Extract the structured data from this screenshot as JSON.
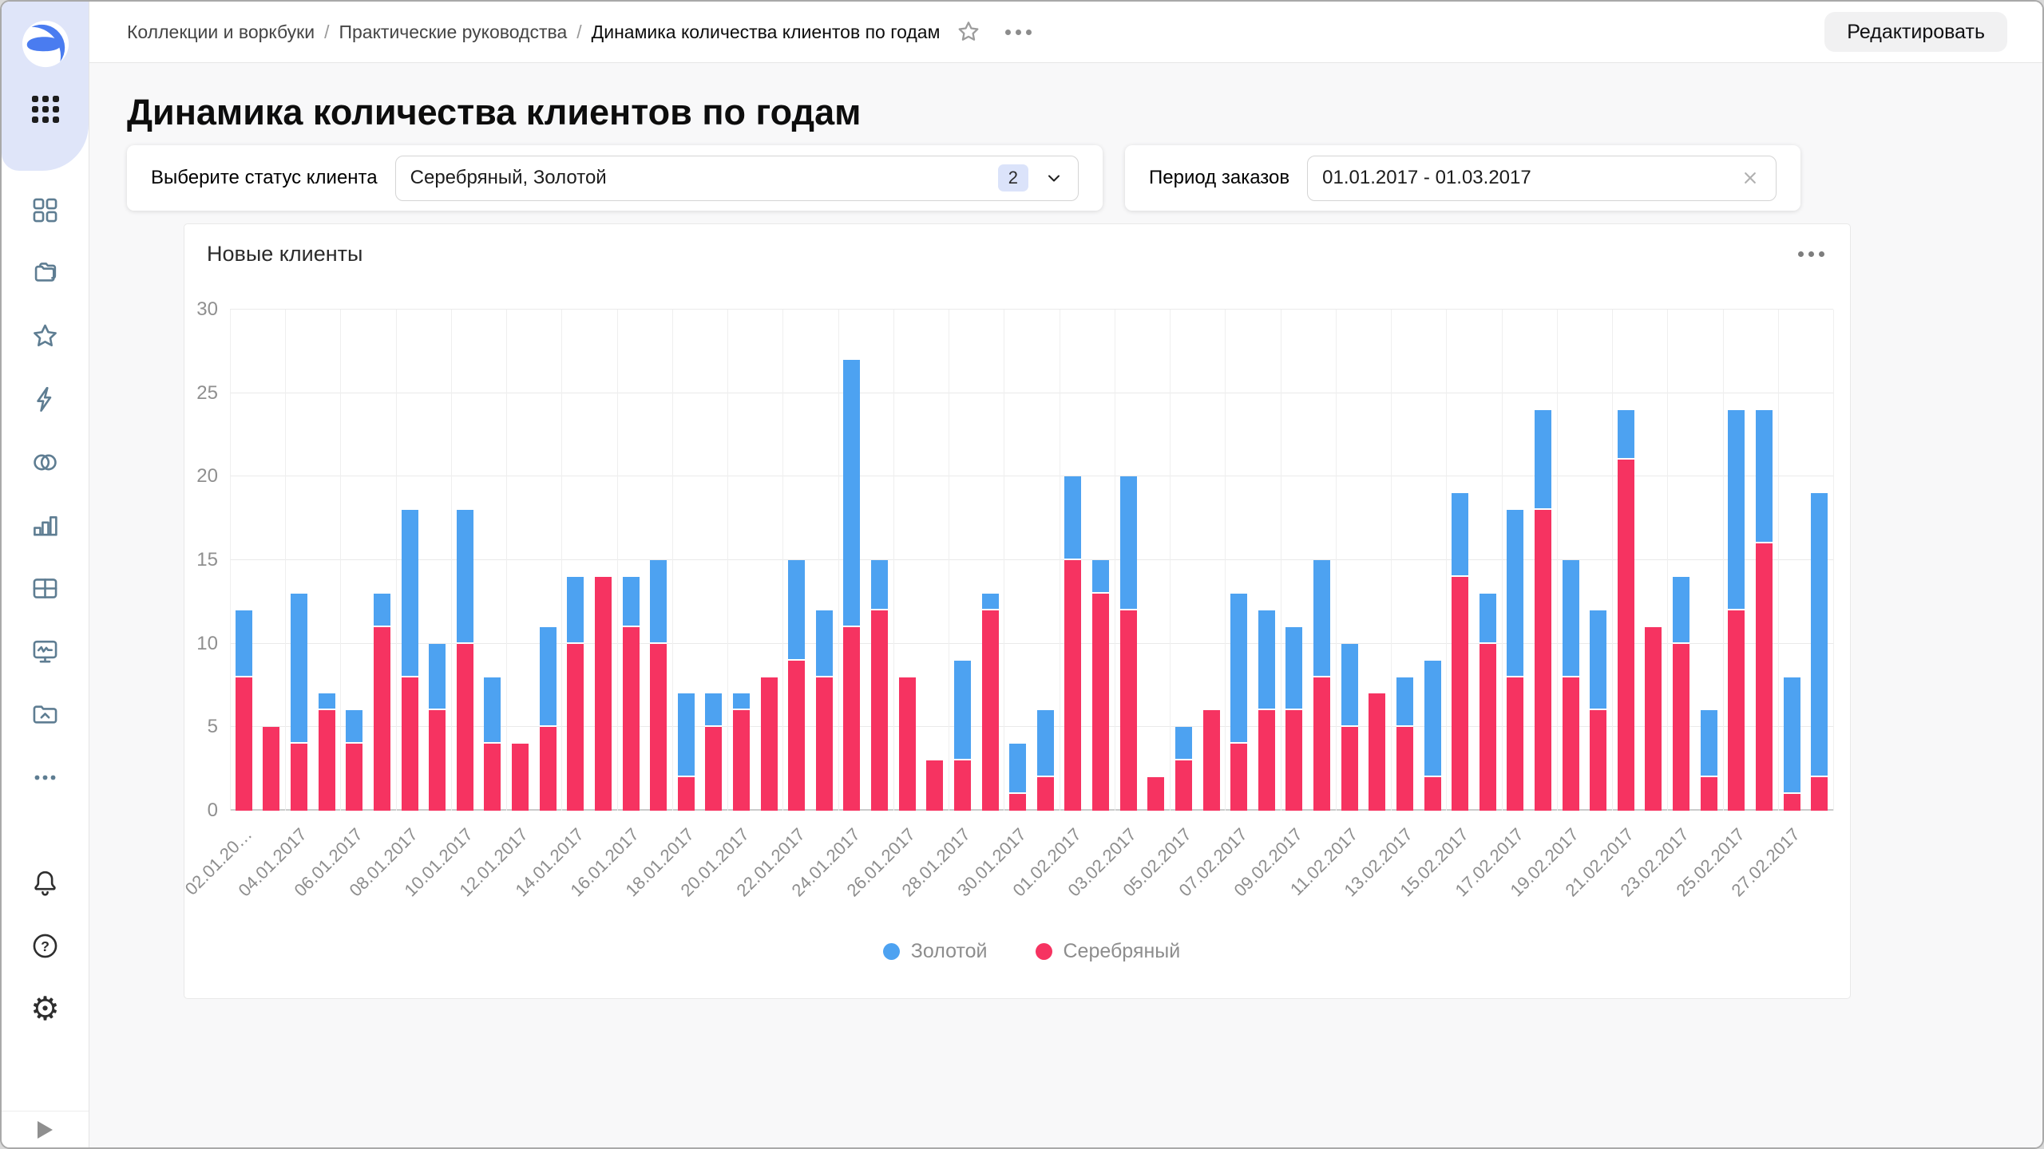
{
  "breadcrumb": {
    "items": [
      "Коллекции и воркбуки",
      "Практические руководства",
      "Динамика количества клиентов по годам"
    ],
    "separator": "/"
  },
  "topbar": {
    "edit_label": "Редактировать"
  },
  "sidebar": {
    "icons": [
      "datalens-logo",
      "apps-grid",
      "squares-grid",
      "collections-folders",
      "favorites-star",
      "quick-lightning",
      "connections-circles",
      "charts-bars",
      "dataset-table",
      "monitoring-screen",
      "storage-folder-cloud",
      "more-ellipsis",
      "notifications-bell",
      "help-question",
      "settings-gear",
      "expand-play"
    ]
  },
  "page": {
    "title": "Динамика количества клиентов по годам"
  },
  "filters": {
    "status": {
      "label": "Выберите статус клиента",
      "value": "Серебряный, Золотой",
      "count_badge": "2"
    },
    "period": {
      "label": "Период заказов",
      "value": "01.01.2017 - 01.03.2017"
    }
  },
  "chart": {
    "title": "Новые клиенты"
  },
  "chart_data": {
    "type": "bar",
    "stacked": true,
    "title": "Новые клиенты",
    "xlabel": "",
    "ylabel": "",
    "ylim": [
      0,
      30
    ],
    "y_ticks": [
      0,
      5,
      10,
      15,
      20,
      25,
      30
    ],
    "grid": true,
    "legend_position": "bottom",
    "colors": {
      "gold": "#4DA2F1",
      "silver": "#F63361"
    },
    "categories": [
      "02.01.2017",
      "03.01.2017",
      "04.01.2017",
      "05.01.2017",
      "06.01.2017",
      "07.01.2017",
      "08.01.2017",
      "09.01.2017",
      "10.01.2017",
      "11.01.2017",
      "12.01.2017",
      "13.01.2017",
      "14.01.2017",
      "15.01.2017",
      "16.01.2017",
      "17.01.2017",
      "18.01.2017",
      "19.01.2017",
      "20.01.2017",
      "21.01.2017",
      "22.01.2017",
      "23.01.2017",
      "24.01.2017",
      "25.01.2017",
      "26.01.2017",
      "27.01.2017",
      "28.01.2017",
      "29.01.2017",
      "30.01.2017",
      "31.01.2017",
      "01.02.2017",
      "02.02.2017",
      "03.02.2017",
      "04.02.2017",
      "05.02.2017",
      "06.02.2017",
      "07.02.2017",
      "08.02.2017",
      "09.02.2017",
      "10.02.2017",
      "11.02.2017",
      "12.02.2017",
      "13.02.2017",
      "14.02.2017",
      "15.02.2017",
      "16.02.2017",
      "17.02.2017",
      "18.02.2017",
      "19.02.2017",
      "20.02.2017",
      "21.02.2017",
      "22.02.2017",
      "23.02.2017",
      "24.02.2017",
      "25.02.2017",
      "26.02.2017",
      "27.02.2017",
      "28.02.2017"
    ],
    "x_tick_labels": [
      "02.01.20…",
      "04.01.2017",
      "06.01.2017",
      "08.01.2017",
      "10.01.2017",
      "12.01.2017",
      "14.01.2017",
      "16.01.2017",
      "18.01.2017",
      "20.01.2017",
      "22.01.2017",
      "24.01.2017",
      "26.01.2017",
      "28.01.2017",
      "30.01.2017",
      "01.02.2017",
      "03.02.2017",
      "05.02.2017",
      "07.02.2017",
      "09.02.2017",
      "11.02.2017",
      "13.02.2017",
      "15.02.2017",
      "17.02.2017",
      "19.02.2017",
      "21.02.2017",
      "23.02.2017",
      "25.02.2017",
      "27.02.2017"
    ],
    "series": [
      {
        "name": "Золотой",
        "color": "#4DA2F1",
        "stack_order": "top",
        "values": [
          4,
          0,
          9,
          1,
          2,
          2,
          10,
          4,
          8,
          4,
          0,
          6,
          4,
          0,
          3,
          5,
          5,
          2,
          1,
          0,
          6,
          4,
          16,
          3,
          0,
          0,
          6,
          1,
          3,
          4,
          5,
          2,
          8,
          0,
          2,
          0,
          9,
          6,
          5,
          7,
          5,
          0,
          3,
          7,
          5,
          3,
          10,
          6,
          7,
          6,
          3,
          0,
          4,
          4,
          12,
          8,
          7,
          17
        ]
      },
      {
        "name": "Серебряный",
        "color": "#F63361",
        "stack_order": "bottom",
        "values": [
          8,
          5,
          4,
          6,
          4,
          11,
          8,
          6,
          10,
          4,
          4,
          5,
          10,
          14,
          11,
          10,
          2,
          5,
          6,
          8,
          9,
          8,
          11,
          12,
          8,
          3,
          3,
          12,
          1,
          2,
          15,
          13,
          12,
          2,
          3,
          6,
          4,
          6,
          6,
          8,
          5,
          7,
          5,
          2,
          14,
          10,
          8,
          18,
          8,
          6,
          21,
          11,
          10,
          2,
          12,
          16,
          1,
          2
        ]
      }
    ]
  }
}
